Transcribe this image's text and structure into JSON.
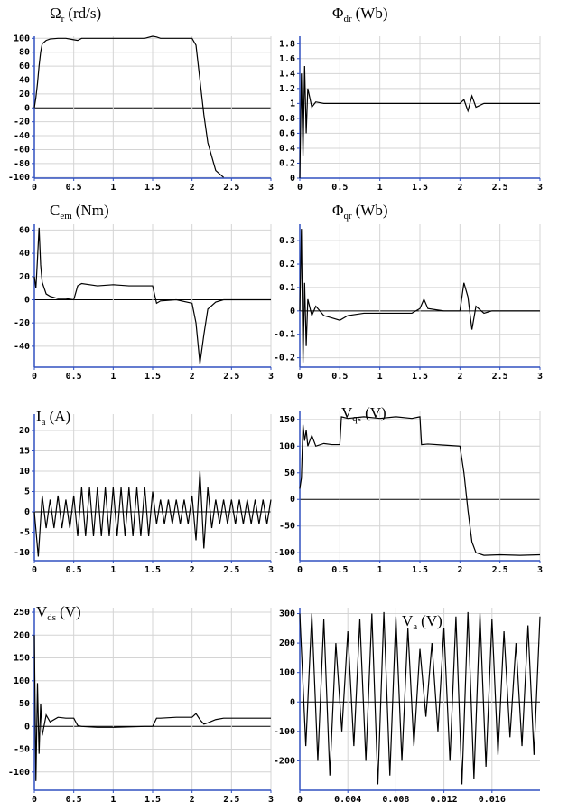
{
  "chart_data": [
    {
      "type": "line",
      "title": {
        "symbol": "Ω",
        "sub": "r",
        "unit": "(rd/s)"
      },
      "color": "#000000",
      "grid": true,
      "x": [
        0,
        0.02,
        0.04,
        0.06,
        0.08,
        0.1,
        0.15,
        0.2,
        0.3,
        0.4,
        0.5,
        0.55,
        0.6,
        0.8,
        1,
        1.2,
        1.4,
        1.5,
        1.55,
        1.6,
        1.8,
        2,
        2.05,
        2.1,
        2.15,
        2.2,
        2.3,
        2.4
      ],
      "values": [
        0,
        15,
        35,
        60,
        80,
        92,
        97,
        99,
        100,
        100,
        98,
        97,
        100,
        100,
        100,
        100,
        100,
        103,
        102,
        100,
        100,
        100,
        90,
        40,
        -10,
        -50,
        -90,
        -100
      ],
      "xlim": [
        0,
        3
      ],
      "xticks": [
        0,
        0.5,
        1,
        1.5,
        2,
        2.5,
        3
      ],
      "ylim": [
        -101,
        103
      ],
      "yticks": [
        100,
        80,
        60,
        40,
        20,
        0,
        -20,
        -40,
        -60,
        -80,
        -100
      ]
    },
    {
      "type": "line",
      "title": {
        "symbol": "Φ",
        "sub": "dr",
        "unit": "(Wb)"
      },
      "color": "#000000",
      "grid": true,
      "x": [
        0,
        0.02,
        0.04,
        0.06,
        0.08,
        0.1,
        0.15,
        0.2,
        0.3,
        0.5,
        1,
        1.5,
        2,
        2.05,
        2.1,
        2.15,
        2.2,
        2.3,
        2.5,
        3
      ],
      "values": [
        0,
        1.4,
        0.3,
        1.5,
        0.6,
        1.2,
        0.95,
        1.02,
        1,
        1,
        1,
        1,
        1,
        1.05,
        0.9,
        1.1,
        0.95,
        1,
        1,
        1
      ],
      "xlim": [
        0,
        3
      ],
      "xticks": [
        0,
        0.5,
        1,
        1.5,
        2,
        2.5,
        3
      ],
      "ylim": [
        0,
        1.9
      ],
      "yticks": [
        1.8,
        1.6,
        1.4,
        1.2,
        1,
        0.8,
        0.6,
        0.4,
        0.2,
        0
      ]
    },
    {
      "type": "line",
      "title": {
        "symbol": "C",
        "sub": "em",
        "unit": "(Nm)"
      },
      "color": "#000000",
      "grid": true,
      "x": [
        0,
        0.02,
        0.04,
        0.06,
        0.08,
        0.1,
        0.15,
        0.2,
        0.3,
        0.4,
        0.5,
        0.55,
        0.6,
        0.8,
        1,
        1.2,
        1.4,
        1.5,
        1.55,
        1.6,
        1.8,
        2,
        2.05,
        2.1,
        2.15,
        2.2,
        2.3,
        2.4,
        2.5,
        2.75,
        3
      ],
      "values": [
        20,
        10,
        35,
        62,
        30,
        15,
        5,
        3,
        1,
        1,
        0,
        12,
        14,
        12,
        13,
        12,
        12,
        12,
        -3,
        -1,
        0,
        -3,
        -20,
        -55,
        -30,
        -8,
        -2,
        0,
        0,
        0,
        0
      ],
      "xlim": [
        0,
        3
      ],
      "xticks": [
        0,
        0.5,
        1,
        1.5,
        2,
        2.5,
        3
      ],
      "ylim": [
        -58,
        65
      ],
      "yticks": [
        60,
        40,
        20,
        0,
        -20,
        -40
      ]
    },
    {
      "type": "line",
      "title": {
        "symbol": "Φ",
        "sub": "qr",
        "unit": "(Wb)"
      },
      "color": "#000000",
      "grid": true,
      "x": [
        0,
        0.02,
        0.04,
        0.06,
        0.08,
        0.1,
        0.15,
        0.2,
        0.3,
        0.4,
        0.5,
        0.55,
        0.6,
        0.8,
        1,
        1.2,
        1.4,
        1.5,
        1.55,
        1.6,
        1.8,
        2,
        2.05,
        2.1,
        2.15,
        2.2,
        2.3,
        2.4,
        2.5,
        2.75,
        3
      ],
      "values": [
        0,
        0.35,
        -0.22,
        0.12,
        -0.15,
        0.05,
        -0.02,
        0.02,
        -0.02,
        -0.03,
        -0.04,
        -0.03,
        -0.02,
        -0.01,
        -0.01,
        -0.01,
        -0.01,
        0.01,
        0.05,
        0.01,
        0,
        0,
        0.12,
        0.06,
        -0.08,
        0.02,
        -0.01,
        0,
        0,
        0,
        0
      ],
      "xlim": [
        0,
        3
      ],
      "xticks": [
        0,
        0.5,
        1,
        1.5,
        2,
        2.5,
        3
      ],
      "ylim": [
        -0.24,
        0.37
      ],
      "yticks": [
        0.3,
        0.2,
        0.1,
        0,
        -0.1,
        -0.2
      ]
    },
    {
      "type": "line",
      "title": {
        "symbol": "I",
        "sub": "a",
        "unit": "(A)"
      },
      "color": "#000000",
      "grid": true,
      "x": [
        0,
        0.05,
        0.1,
        0.15,
        0.2,
        0.25,
        0.3,
        0.35,
        0.4,
        0.45,
        0.5,
        0.55,
        0.6,
        0.65,
        0.7,
        0.75,
        0.8,
        0.85,
        0.9,
        0.95,
        1,
        1.05,
        1.1,
        1.15,
        1.2,
        1.25,
        1.3,
        1.35,
        1.4,
        1.45,
        1.5,
        1.55,
        1.6,
        1.65,
        1.7,
        1.75,
        1.8,
        1.85,
        1.9,
        1.95,
        2,
        2.05,
        2.1,
        2.15,
        2.2,
        2.25,
        2.3,
        2.35,
        2.4,
        2.45,
        2.5,
        2.55,
        2.6,
        2.65,
        2.7,
        2.75,
        2.8,
        2.85,
        2.9,
        2.95,
        3
      ],
      "values": [
        0,
        -11,
        4,
        -4,
        3,
        -4,
        4,
        -4,
        3,
        -4,
        4,
        -6,
        6,
        -6,
        6,
        -6,
        6,
        -6,
        6,
        -6,
        6,
        -6,
        6,
        -6,
        6,
        -6,
        6,
        -6,
        6,
        -6,
        5,
        -3,
        3,
        -3,
        3,
        -3,
        3,
        -3,
        3,
        -3,
        4,
        -7,
        10,
        -9,
        6,
        -4,
        3,
        -3,
        3,
        -3,
        3,
        -3,
        3,
        -3,
        3,
        -3,
        3,
        -3,
        3,
        -3,
        3
      ],
      "xlim": [
        0,
        3
      ],
      "xticks": [
        0,
        0.5,
        1,
        1.5,
        2,
        2.5,
        3
      ],
      "ylim": [
        -12,
        24
      ],
      "yticks": [
        20,
        15,
        10,
        5,
        0,
        -5,
        -10
      ]
    },
    {
      "type": "line",
      "title": {
        "symbol": "V",
        "sub": "qs",
        "unit": "(V)"
      },
      "color": "#000000",
      "grid": true,
      "x": [
        0,
        0.02,
        0.04,
        0.06,
        0.08,
        0.1,
        0.15,
        0.2,
        0.3,
        0.4,
        0.5,
        0.52,
        0.6,
        0.8,
        1,
        1.2,
        1.4,
        1.5,
        1.52,
        1.6,
        1.8,
        2,
        2.05,
        2.1,
        2.15,
        2.2,
        2.3,
        2.5,
        2.75,
        3
      ],
      "values": [
        20,
        40,
        140,
        110,
        130,
        100,
        120,
        100,
        105,
        103,
        103,
        155,
        152,
        155,
        152,
        155,
        152,
        155,
        103,
        104,
        102,
        100,
        50,
        -20,
        -80,
        -100,
        -105,
        -104,
        -105,
        -104
      ],
      "xlim": [
        0,
        3
      ],
      "xticks": [
        0,
        0.5,
        1,
        1.5,
        2,
        2.5,
        3
      ],
      "ylim": [
        -115,
        165
      ],
      "yticks": [
        150,
        100,
        50,
        0,
        -50,
        -100
      ]
    },
    {
      "type": "line",
      "title": {
        "symbol": "V",
        "sub": "ds",
        "unit": "(V)"
      },
      "color": "#000000",
      "grid": true,
      "x": [
        0,
        0.02,
        0.04,
        0.06,
        0.08,
        0.1,
        0.15,
        0.2,
        0.3,
        0.4,
        0.5,
        0.55,
        0.6,
        0.8,
        1,
        1.2,
        1.4,
        1.5,
        1.55,
        1.6,
        1.8,
        2,
        2.05,
        2.1,
        2.15,
        2.2,
        2.3,
        2.4,
        2.5,
        2.75,
        3
      ],
      "values": [
        200,
        -120,
        95,
        -60,
        50,
        -20,
        25,
        10,
        20,
        18,
        18,
        2,
        0,
        -2,
        -2,
        -1,
        0,
        0,
        18,
        18,
        20,
        20,
        28,
        15,
        5,
        8,
        15,
        18,
        18,
        18,
        18
      ],
      "xlim": [
        0,
        3
      ],
      "xticks": [
        0,
        0.5,
        1,
        1.5,
        2,
        2.5,
        3
      ],
      "ylim": [
        -140,
        260
      ],
      "yticks": [
        250,
        200,
        150,
        100,
        50,
        0,
        -50,
        -100
      ]
    },
    {
      "type": "line",
      "title": {
        "symbol": "V",
        "sub": "a",
        "unit": "(V)"
      },
      "color": "#000000",
      "grid": true,
      "x": [
        0,
        0.0005,
        0.001,
        0.0015,
        0.002,
        0.0025,
        0.003,
        0.0035,
        0.004,
        0.0045,
        0.005,
        0.0055,
        0.006,
        0.0065,
        0.007,
        0.0075,
        0.008,
        0.0085,
        0.009,
        0.0095,
        0.01,
        0.0105,
        0.011,
        0.0115,
        0.012,
        0.0125,
        0.013,
        0.0135,
        0.014,
        0.0145,
        0.015,
        0.0155,
        0.016,
        0.0165,
        0.017,
        0.0175,
        0.018,
        0.0185,
        0.019,
        0.0195,
        0.02
      ],
      "values": [
        300,
        -150,
        300,
        -200,
        280,
        -250,
        200,
        -100,
        240,
        -150,
        280,
        -200,
        300,
        -280,
        305,
        -250,
        290,
        -200,
        250,
        -150,
        180,
        -50,
        200,
        -100,
        250,
        -200,
        290,
        -280,
        305,
        -260,
        300,
        -220,
        280,
        -180,
        240,
        -120,
        200,
        -150,
        260,
        -180,
        290
      ],
      "xlim": [
        0,
        0.02
      ],
      "xticks": [
        0,
        0.004,
        0.008,
        0.012,
        0.016
      ],
      "ylim": [
        -300,
        320
      ],
      "yticks": [
        300,
        200,
        100,
        0,
        -100,
        -200
      ]
    }
  ]
}
